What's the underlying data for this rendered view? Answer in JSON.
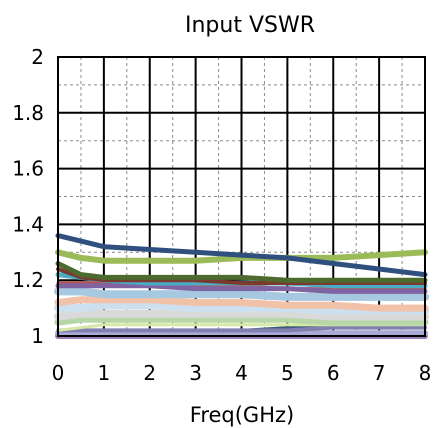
{
  "chart_data": {
    "type": "line",
    "title": "Input VSWR",
    "xlabel": "Freq(GHz)",
    "ylabel": "",
    "xlim": [
      0,
      8
    ],
    "ylim": [
      1,
      2
    ],
    "x_ticks": [
      "0",
      "1",
      "2",
      "3",
      "4",
      "5",
      "6",
      "7",
      "8"
    ],
    "y_ticks": [
      "1",
      "1.2",
      "1.4",
      "1.6",
      "1.8",
      "2"
    ],
    "grid": true,
    "x": [
      0,
      0.5,
      1,
      2,
      3,
      4,
      5,
      6,
      7,
      8
    ],
    "series": [
      {
        "color": "#2f4f7f",
        "width": 5,
        "values": [
          1.36,
          1.34,
          1.32,
          1.31,
          1.3,
          1.29,
          1.28,
          1.26,
          1.24,
          1.22
        ]
      },
      {
        "color": "#9bbb59",
        "width": 6,
        "values": [
          1.3,
          1.28,
          1.27,
          1.27,
          1.27,
          1.28,
          1.28,
          1.28,
          1.29,
          1.3
        ]
      },
      {
        "color": "#4e6b2f",
        "width": 5,
        "values": [
          1.26,
          1.22,
          1.21,
          1.21,
          1.21,
          1.21,
          1.2,
          1.2,
          1.2,
          1.2
        ]
      },
      {
        "color": "#7a3b2e",
        "width": 4,
        "values": [
          1.24,
          1.21,
          1.2,
          1.2,
          1.2,
          1.19,
          1.19,
          1.19,
          1.19,
          1.19
        ]
      },
      {
        "color": "#4bacc6",
        "width": 5,
        "values": [
          1.22,
          1.21,
          1.2,
          1.19,
          1.19,
          1.19,
          1.19,
          1.18,
          1.18,
          1.18
        ]
      },
      {
        "color": "#8064a2",
        "width": 5,
        "values": [
          1.18,
          1.18,
          1.18,
          1.18,
          1.17,
          1.17,
          1.17,
          1.16,
          1.16,
          1.16
        ]
      },
      {
        "color": "#c0504d",
        "width": 3,
        "values": [
          1.19,
          1.19,
          1.19,
          1.18,
          1.18,
          1.18,
          1.17,
          1.17,
          1.17,
          1.17
        ]
      },
      {
        "color": "#a6c8e0",
        "width": 8,
        "values": [
          1.16,
          1.16,
          1.15,
          1.15,
          1.15,
          1.15,
          1.14,
          1.14,
          1.14,
          1.14
        ]
      },
      {
        "color": "#f2c2a8",
        "width": 7,
        "values": [
          1.12,
          1.13,
          1.13,
          1.13,
          1.12,
          1.12,
          1.11,
          1.11,
          1.1,
          1.1
        ]
      },
      {
        "color": "#cde0ef",
        "width": 8,
        "values": [
          1.1,
          1.1,
          1.11,
          1.11,
          1.1,
          1.1,
          1.1,
          1.09,
          1.09,
          1.09
        ]
      },
      {
        "color": "#d9d9d9",
        "width": 8,
        "values": [
          1.07,
          1.08,
          1.08,
          1.08,
          1.08,
          1.08,
          1.08,
          1.07,
          1.07,
          1.07
        ]
      },
      {
        "color": "#b7d7a8",
        "width": 7,
        "values": [
          1.05,
          1.06,
          1.06,
          1.06,
          1.06,
          1.06,
          1.06,
          1.05,
          1.05,
          1.05
        ]
      },
      {
        "color": "#d6e8a8",
        "width": 3,
        "values": [
          1.02,
          1.03,
          1.04,
          1.04,
          1.04,
          1.04,
          1.04,
          1.04,
          1.04,
          1.04
        ]
      },
      {
        "color": "#7f7fb0",
        "width": 4,
        "values": [
          1.02,
          1.02,
          1.02,
          1.02,
          1.02,
          1.02,
          1.02,
          1.03,
          1.03,
          1.03
        ]
      },
      {
        "color": "#a9a9d6",
        "width": 6,
        "values": [
          1.01,
          1.01,
          1.01,
          1.01,
          1.01,
          1.01,
          1.01,
          1.01,
          1.01,
          1.01
        ]
      },
      {
        "color": "#3c5a7a",
        "width": 3,
        "values": [
          1.01,
          1.01,
          1.01,
          1.01,
          1.02,
          1.02,
          1.03,
          1.03,
          1.04,
          1.04
        ]
      },
      {
        "color": "#9a7cb3",
        "width": 6,
        "values": [
          1.0,
          1.0,
          1.0,
          1.0,
          1.0,
          1.0,
          1.0,
          1.0,
          1.0,
          1.0
        ]
      }
    ]
  }
}
